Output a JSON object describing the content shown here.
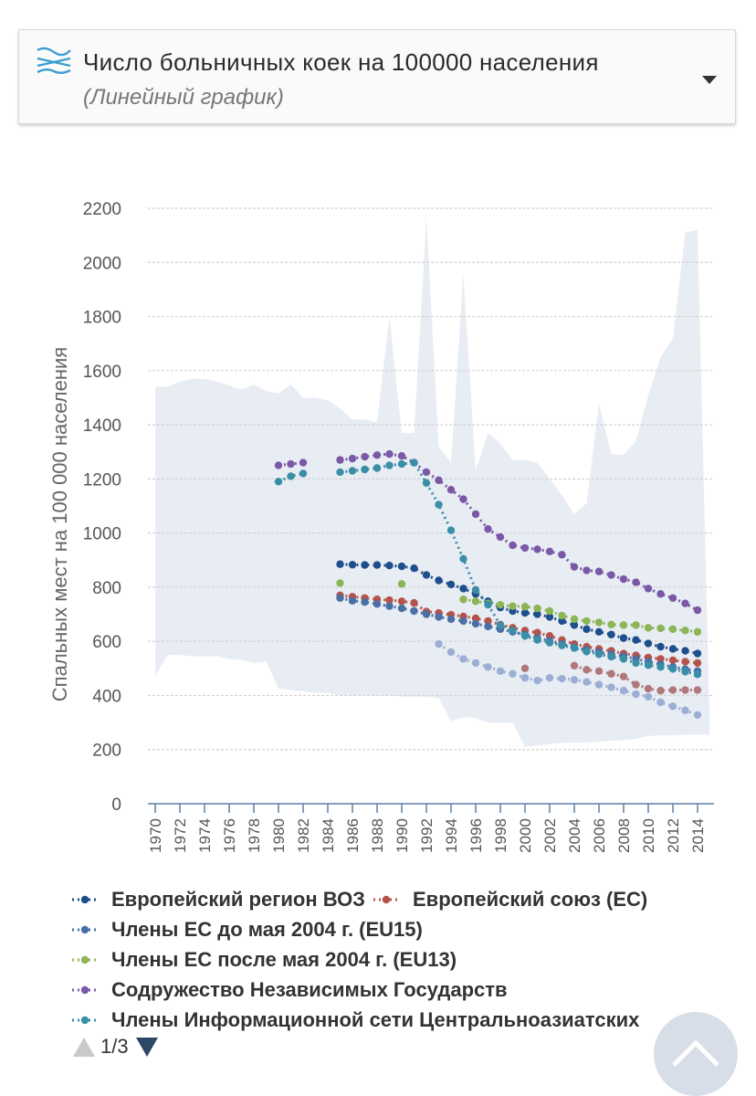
{
  "header": {
    "title": "Число больничных коек на 100000 населения",
    "subtitle": "(Линейный график)",
    "icon": "chart-waves-icon",
    "dropdown_icon": "caret-down-icon"
  },
  "chart_data": {
    "type": "line",
    "title": "",
    "ylabel": "Спальных мест на 100 000 населения",
    "xlabel": "",
    "ylim": [
      0,
      2200
    ],
    "yticks": [
      0,
      200,
      400,
      600,
      800,
      1000,
      1200,
      1400,
      1600,
      1800,
      2000,
      2200
    ],
    "xlim": [
      1970,
      2015
    ],
    "xticks": [
      "1970",
      "1972",
      "1974",
      "1976",
      "1978",
      "1980",
      "1982",
      "1984",
      "1986",
      "1988",
      "1990",
      "1992",
      "1994",
      "1996",
      "1998",
      "2000",
      "2002",
      "2004",
      "2006",
      "2008",
      "2010",
      "2012",
      "2014"
    ],
    "grid": true,
    "range_band": {
      "color": "#e8edf4",
      "x": [
        1970,
        1971,
        1972,
        1973,
        1974,
        1975,
        1976,
        1977,
        1978,
        1979,
        1980,
        1981,
        1982,
        1983,
        1984,
        1985,
        1986,
        1987,
        1988,
        1989,
        1990,
        1991,
        1992,
        1993,
        1994,
        1995,
        1996,
        1997,
        1998,
        1999,
        2000,
        2001,
        2002,
        2003,
        2004,
        2005,
        2006,
        2007,
        2008,
        2009,
        2010,
        2011,
        2012,
        2013,
        2014,
        2015
      ],
      "upper": [
        1540,
        1540,
        1560,
        1570,
        1570,
        1560,
        1545,
        1530,
        1550,
        1525,
        1515,
        1550,
        1500,
        1500,
        1490,
        1460,
        1420,
        1420,
        1410,
        1800,
        1370,
        1370,
        2170,
        1320,
        1260,
        1960,
        1230,
        1370,
        1330,
        1270,
        1270,
        1260,
        1200,
        1140,
        1070,
        1110,
        1480,
        1290,
        1290,
        1340,
        1510,
        1650,
        1720,
        2110,
        2120,
        260
      ],
      "lower": [
        470,
        550,
        550,
        545,
        545,
        545,
        535,
        530,
        520,
        525,
        425,
        420,
        415,
        410,
        410,
        400,
        400,
        400,
        400,
        400,
        395,
        395,
        395,
        390,
        305,
        320,
        315,
        300,
        300,
        300,
        210,
        215,
        220,
        225,
        225,
        225,
        230,
        232,
        235,
        240,
        250,
        252,
        252,
        255,
        255,
        255
      ]
    },
    "series": [
      {
        "name": "Европейский регион ВОЗ",
        "color": "#1f4e8c",
        "segments": [
          {
            "x": [
              1985,
              1986,
              1987,
              1988,
              1989,
              1990,
              1991,
              1992,
              1993,
              1994,
              1995,
              1996,
              1997,
              1998,
              1999,
              2000,
              2001,
              2002,
              2003,
              2004,
              2005,
              2006,
              2007,
              2008,
              2009,
              2010,
              2011,
              2012,
              2013,
              2014
            ],
            "y": [
              885,
              883,
              882,
              882,
              880,
              877,
              870,
              845,
              825,
              810,
              795,
              775,
              748,
              725,
              712,
              705,
              700,
              690,
              675,
              660,
              645,
              635,
              625,
              612,
              605,
              592,
              580,
              572,
              565,
              555
            ]
          }
        ]
      },
      {
        "name": "Европейский союз (ЕС)",
        "color": "#b5534a",
        "segments": [
          {
            "x": [
              1985,
              1986,
              1987,
              1988,
              1989,
              1990,
              1991,
              1992,
              1993,
              1994,
              1995,
              1996,
              1997,
              1998,
              1999,
              2000,
              2001,
              2002,
              2003,
              2004,
              2005,
              2006,
              2007,
              2008,
              2009,
              2010,
              2011,
              2012,
              2013,
              2014
            ],
            "y": [
              770,
              765,
              760,
              755,
              752,
              748,
              742,
              710,
              705,
              698,
              692,
              685,
              675,
              662,
              650,
              640,
              632,
              620,
              605,
              590,
              580,
              572,
              565,
              555,
              548,
              540,
              535,
              530,
              525,
              520
            ]
          }
        ]
      },
      {
        "name": "Члены ЕС до мая 2004 г. (EU15)",
        "color": "#4a6fa5",
        "segments": [
          {
            "x": [
              1985,
              1986,
              1987,
              1988,
              1989,
              1990,
              1991,
              1992,
              1993,
              1994,
              1995,
              1996,
              1997,
              1998,
              1999,
              2000,
              2001,
              2002,
              2003,
              2004,
              2005,
              2006,
              2007,
              2008,
              2009,
              2010,
              2011,
              2012,
              2013,
              2014
            ],
            "y": [
              760,
              750,
              745,
              738,
              730,
              722,
              712,
              700,
              690,
              682,
              675,
              665,
              655,
              645,
              635,
              625,
              612,
              602,
              590,
              578,
              568,
              560,
              552,
              545,
              535,
              525,
              515,
              505,
              497,
              490
            ]
          }
        ]
      },
      {
        "name": "Члены ЕС после мая 2004 г. (EU13)",
        "color": "#8cb556",
        "segments": [
          {
            "x": [
              1985
            ],
            "y": [
              815
            ]
          },
          {
            "x": [
              1990
            ],
            "y": [
              812
            ]
          },
          {
            "x": [
              1995,
              1996,
              1997,
              1998,
              1999,
              2000,
              2001,
              2002,
              2003,
              2004,
              2005,
              2006,
              2007,
              2008,
              2009,
              2010,
              2011,
              2012,
              2013,
              2014
            ],
            "y": [
              755,
              748,
              740,
              735,
              730,
              728,
              722,
              712,
              695,
              682,
              675,
              670,
              662,
              660,
              660,
              650,
              648,
              645,
              640,
              635
            ]
          }
        ]
      },
      {
        "name": "Содружество Независимых Государств",
        "color": "#7b58a6",
        "segments": [
          {
            "x": [
              1980,
              1981,
              1982
            ],
            "y": [
              1250,
              1255,
              1260
            ]
          },
          {
            "x": [
              1985,
              1986,
              1987,
              1988,
              1989,
              1990,
              1991,
              1992,
              1993,
              1994,
              1995,
              1996,
              1997,
              1998,
              1999,
              2000,
              2001,
              2002,
              2003,
              2004,
              2005,
              2006,
              2007,
              2008,
              2009,
              2010,
              2011,
              2012,
              2013,
              2014
            ],
            "y": [
              1270,
              1275,
              1282,
              1288,
              1292,
              1285,
              1260,
              1225,
              1195,
              1160,
              1125,
              1070,
              1015,
              985,
              955,
              945,
              940,
              932,
              920,
              875,
              862,
              858,
              845,
              830,
              818,
              795,
              775,
              760,
              740,
              715
            ]
          }
        ]
      },
      {
        "name": "Члены Информационной сети Центральноазиатских",
        "color": "#3a8fa6",
        "segments": [
          {
            "x": [
              1980,
              1981,
              1982
            ],
            "y": [
              1190,
              1210,
              1220
            ]
          },
          {
            "x": [
              1985,
              1986,
              1987,
              1988,
              1989,
              1990,
              1991,
              1992,
              1993,
              1994,
              1995,
              1996,
              1997,
              1998,
              1999,
              2000,
              2001,
              2002,
              2003,
              2004,
              2005,
              2006,
              2007,
              2008,
              2009,
              2010,
              2011,
              2012,
              2013,
              2014
            ],
            "y": [
              1225,
              1230,
              1235,
              1240,
              1250,
              1255,
              1260,
              1185,
              1105,
              1010,
              905,
              790,
              735,
              660,
              640,
              620,
              605,
              595,
              585,
              575,
              562,
              552,
              543,
              535,
              520,
              512,
              505,
              498,
              488,
              478
            ]
          }
        ]
      },
      {
        "name": "",
        "color": "#9bafd4",
        "segments": [
          {
            "x": [
              1993,
              1994,
              1995,
              1996,
              1997,
              1998,
              1999,
              2000,
              2001,
              2002,
              2003,
              2004,
              2005,
              2006,
              2007,
              2008,
              2009,
              2010,
              2011,
              2012,
              2013,
              2014
            ],
            "y": [
              590,
              560,
              535,
              520,
              505,
              490,
              480,
              465,
              455,
              465,
              462,
              458,
              450,
              440,
              430,
              418,
              405,
              395,
              375,
              360,
              345,
              328
            ]
          }
        ]
      },
      {
        "name": "",
        "color": "#b0787a",
        "segments": [
          {
            "x": [
              2000
            ],
            "y": [
              500
            ]
          },
          {
            "x": [
              2004,
              2005,
              2006,
              2007,
              2008,
              2009,
              2010,
              2011,
              2012,
              2013,
              2014
            ],
            "y": [
              510,
              495,
              490,
              480,
              470,
              440,
              425,
              418,
              420,
              420,
              420
            ]
          }
        ]
      }
    ],
    "legend": [
      "Европейский регион ВОЗ",
      "Европейский союз (ЕС)",
      "Члены ЕС до мая 2004 г. (EU15)",
      "Члены ЕС после мая 2004 г. (EU13)",
      "Содружество Независимых Государств",
      "Члены Информационной сети Центральноазиатских"
    ]
  },
  "pager": {
    "text": "1/3",
    "up_icon": "triangle-up-icon",
    "down_icon": "triangle-down-icon"
  },
  "scroll_top": {
    "icon": "chevron-up-icon"
  }
}
